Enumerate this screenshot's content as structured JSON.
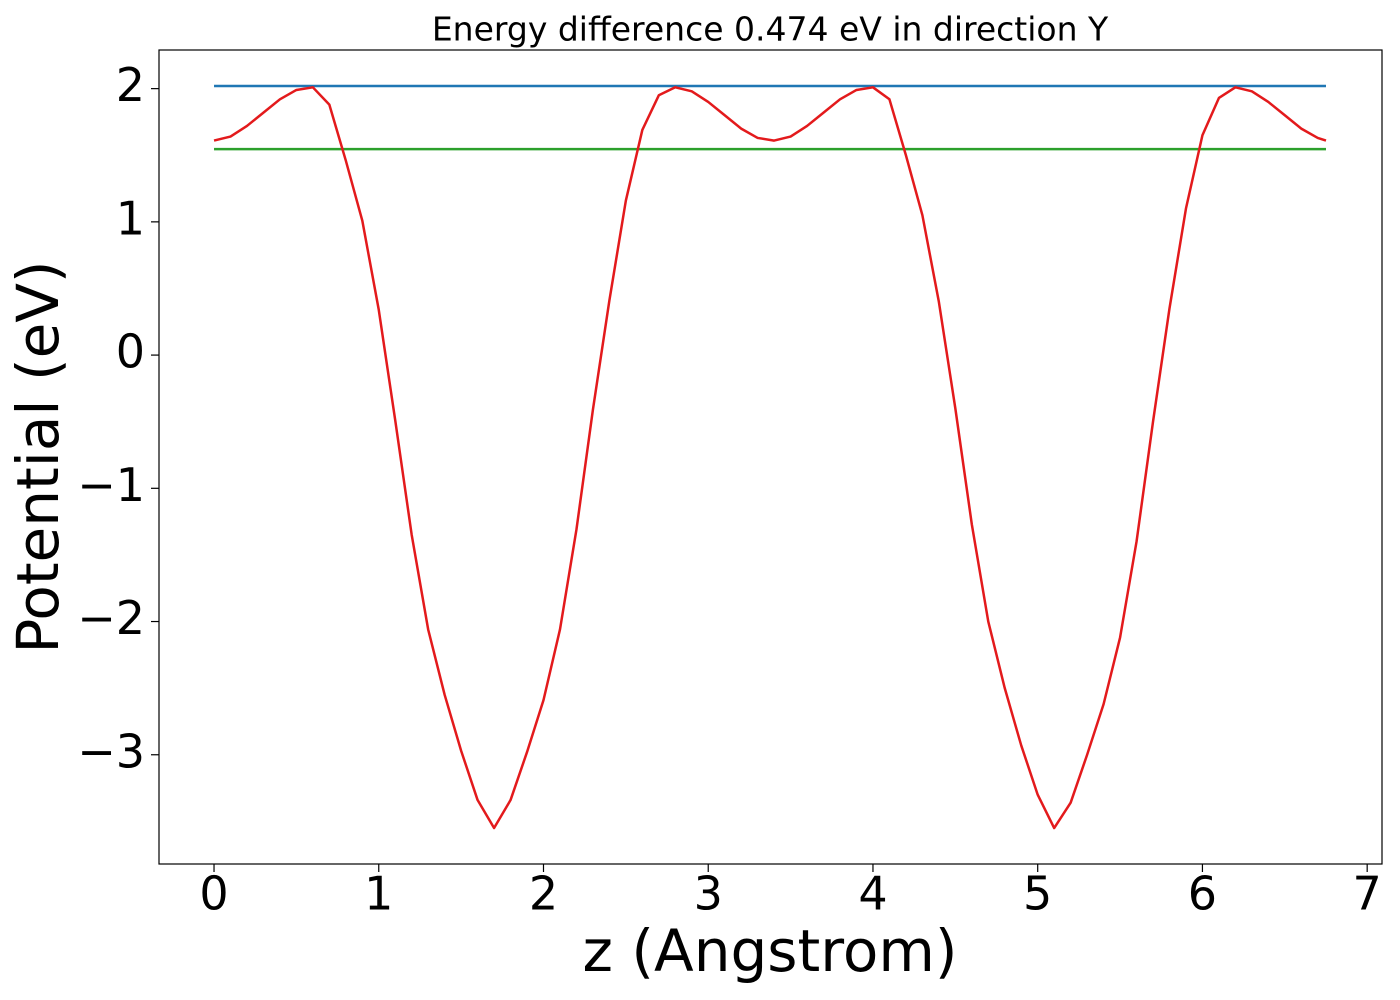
{
  "chart_data": {
    "type": "line",
    "title": "Energy difference 0.474 eV in direction Y",
    "x_label": "z (Angstrom)",
    "y_label": "Potential (eV)",
    "xlim": [
      -0.334,
      7.09
    ],
    "ylim": [
      -3.82,
      2.29
    ],
    "xticks": [
      0,
      1,
      2,
      3,
      4,
      5,
      6,
      7
    ],
    "yticks": [
      {
        "value": -3,
        "label": "−3"
      },
      {
        "value": -2,
        "label": "−2"
      },
      {
        "value": -1,
        "label": "−1"
      },
      0,
      1,
      2
    ],
    "grid": false,
    "series": [
      {
        "color": "#1f77b4",
        "x": [
          0,
          6.75
        ],
        "values": [
          2.02,
          2.02
        ]
      },
      {
        "color": "#2ca02c",
        "x": [
          0,
          6.75
        ],
        "values": [
          1.546,
          1.546
        ]
      },
      {
        "color": "#e31a1c",
        "x": [
          0,
          0.1,
          0.2,
          0.3,
          0.4,
          0.5,
          0.6,
          0.7,
          0.8,
          0.9,
          1.0,
          1.1,
          1.2,
          1.3,
          1.4,
          1.5,
          1.6,
          1.7,
          1.8,
          1.9,
          2.0,
          2.1,
          2.2,
          2.3,
          2.4,
          2.5,
          2.6,
          2.7,
          2.8,
          2.9,
          3.0,
          3.1,
          3.2,
          3.3,
          3.4,
          3.5,
          3.6,
          3.7,
          3.8,
          3.9,
          4.0,
          4.1,
          4.2,
          4.3,
          4.4,
          4.5,
          4.6,
          4.7,
          4.8,
          4.9,
          5.0,
          5.1,
          5.2,
          5.3,
          5.4,
          5.5,
          5.6,
          5.7,
          5.8,
          5.9,
          6.0,
          6.1,
          6.2,
          6.3,
          6.4,
          6.5,
          6.6,
          6.7,
          6.75
        ],
        "values": [
          1.61,
          1.64,
          1.72,
          1.82,
          1.92,
          1.99,
          2.01,
          1.88,
          1.46,
          1.01,
          0.34,
          -0.49,
          -1.35,
          -2.06,
          -2.55,
          -2.97,
          -3.34,
          -3.55,
          -3.34,
          -2.98,
          -2.59,
          -2.06,
          -1.31,
          -0.41,
          0.41,
          1.16,
          1.69,
          1.95,
          2.01,
          1.98,
          1.9,
          1.8,
          1.7,
          1.63,
          1.61,
          1.64,
          1.72,
          1.82,
          1.92,
          1.99,
          2.01,
          1.92,
          1.5,
          1.05,
          0.4,
          -0.4,
          -1.27,
          -2.0,
          -2.5,
          -2.93,
          -3.3,
          -3.55,
          -3.36,
          -3.0,
          -2.62,
          -2.12,
          -1.4,
          -0.5,
          0.35,
          1.1,
          1.65,
          1.93,
          2.01,
          1.98,
          1.9,
          1.8,
          1.7,
          1.63,
          1.61
        ]
      }
    ]
  }
}
